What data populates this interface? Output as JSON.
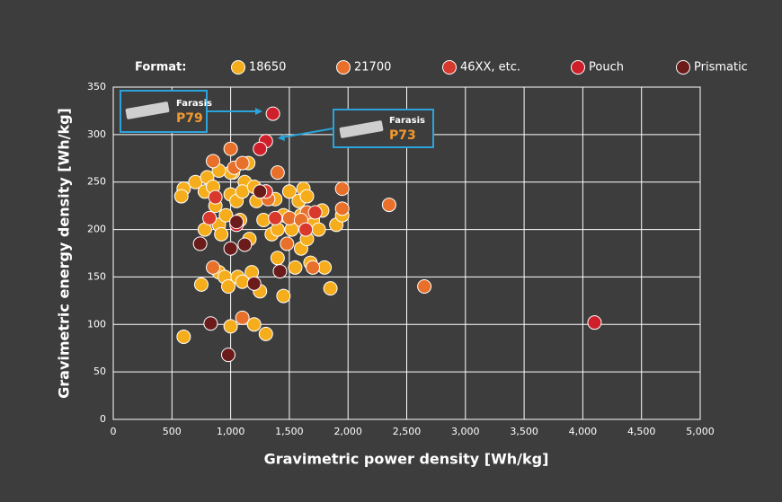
{
  "chart_data": {
    "type": "scatter",
    "legend_title": "Format:",
    "legend_position": "top",
    "grid": true,
    "xlabel": "Gravimetric power density [Wh/kg]",
    "ylabel": "Gravimetric energy density [Wh/kg]",
    "xlim": [
      0,
      5000
    ],
    "ylim": [
      0,
      350
    ],
    "xticks": [
      0,
      500,
      {
        "value": 1000,
        "label": "1,000"
      },
      {
        "value": 1500,
        "label": "1,500"
      },
      {
        "value": 2000,
        "label": "2,000"
      },
      {
        "value": 2500,
        "label": "2,500"
      },
      {
        "value": 3000,
        "label": "3,000"
      },
      {
        "value": 3500,
        "label": "3,500"
      },
      {
        "value": 4000,
        "label": "4,000"
      },
      {
        "value": 4500,
        "label": "4,500"
      },
      {
        "value": 5000,
        "label": "5,000"
      }
    ],
    "yticks": [
      0,
      50,
      100,
      150,
      200,
      250,
      300,
      350
    ],
    "annotations": [
      {
        "company": "Farasis",
        "model": "P79"
      },
      {
        "company": "Farasis",
        "model": "P73"
      }
    ],
    "series": [
      {
        "name": "18650",
        "color": "#f5ad1c",
        "x": [
          600,
          600,
          580,
          700,
          750,
          780,
          780,
          800,
          850,
          870,
          900,
          920,
          900,
          950,
          960,
          980,
          1000,
          1000,
          1020,
          1050,
          1060,
          1080,
          1100,
          1120,
          1150,
          1160,
          1180,
          1200,
          1220,
          1250,
          1280,
          1300,
          1300,
          1350,
          1380,
          1400,
          1450,
          1450,
          1500,
          1520,
          1550,
          1580,
          1600,
          1620,
          1650,
          1650,
          1680,
          1700,
          1750,
          1780,
          1800,
          1850,
          1900,
          1950,
          1100,
          1000,
          900,
          1200,
          1400,
          1600
        ],
        "y": [
          87,
          243,
          235,
          250,
          142,
          240,
          200,
          255,
          245,
          225,
          205,
          195,
          155,
          150,
          215,
          140,
          237,
          98,
          260,
          230,
          150,
          210,
          145,
          250,
          270,
          190,
          155,
          100,
          230,
          135,
          210,
          90,
          240,
          195,
          232,
          170,
          130,
          215,
          240,
          200,
          160,
          230,
          180,
          243,
          235,
          190,
          165,
          210,
          200,
          220,
          160,
          138,
          205,
          215,
          240,
          260,
          262,
          245,
          200,
          215
        ]
      },
      {
        "name": "21700",
        "color": "#e8702a",
        "x": [
          850,
          1000,
          1030,
          1100,
          1400,
          1500,
          1480,
          1650,
          1700,
          1950,
          1950,
          2350,
          2650,
          1100,
          850,
          1320,
          1600
        ],
        "y": [
          272,
          285,
          265,
          270,
          260,
          212,
          185,
          218,
          160,
          243,
          222,
          226,
          140,
          107,
          160,
          232,
          210
        ]
      },
      {
        "name": "46XX, etc.",
        "color": "#d8392c",
        "x": [
          820,
          870,
          1300,
          1380,
          1640,
          1720
        ],
        "y": [
          212,
          234,
          240,
          212,
          200,
          218
        ]
      },
      {
        "name": "Pouch",
        "color": "#cf1f2a",
        "x": [
          1360,
          1300,
          1250,
          4100,
          1050
        ],
        "y": [
          322,
          293,
          285,
          102,
          205
        ]
      },
      {
        "name": "Prismatic",
        "color": "#6c1b1b",
        "x": [
          740,
          830,
          980,
          1000,
          1050,
          1120,
          1250,
          1420,
          1200
        ],
        "y": [
          185,
          101,
          68,
          180,
          208,
          184,
          240,
          156,
          143
        ]
      }
    ]
  }
}
